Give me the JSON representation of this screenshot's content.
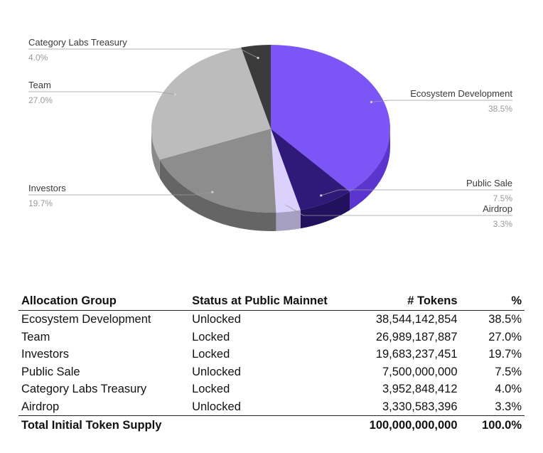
{
  "chart_data": {
    "type": "pie",
    "style": "3d",
    "slices": [
      {
        "label": "Ecosystem Development",
        "value": 38.5,
        "display": "38.5%",
        "color": "#7b55f5",
        "side_color": "#5a36cf"
      },
      {
        "label": "Public Sale",
        "value": 7.5,
        "display": "7.5%",
        "color": "#2f1a7a",
        "side_color": "#22115c"
      },
      {
        "label": "Airdrop",
        "value": 3.3,
        "display": "3.3%",
        "color": "#dad2fc",
        "side_color": "#a59fc2"
      },
      {
        "label": "Investors",
        "value": 19.7,
        "display": "19.7%",
        "color": "#8d8d8d",
        "side_color": "#656565"
      },
      {
        "label": "Team",
        "value": 27.0,
        "display": "27.0%",
        "color": "#bcbcbc",
        "side_color": "#8a8a8a"
      },
      {
        "label": "Category Labs Treasury",
        "value": 4.0,
        "display": "4.0%",
        "color": "#3b3b3b",
        "side_color": "#262626"
      }
    ]
  },
  "table": {
    "headers": {
      "group": "Allocation Group",
      "status": "Status at Public Mainnet",
      "tokens": "# Tokens",
      "pct": "%"
    },
    "rows": [
      {
        "group": "Ecosystem Development",
        "status": "Unlocked",
        "tokens": "38,544,142,854",
        "pct": "38.5%"
      },
      {
        "group": "Team",
        "status": "Locked",
        "tokens": "26,989,187,887",
        "pct": "27.0%"
      },
      {
        "group": "Investors",
        "status": "Locked",
        "tokens": "19,683,237,451",
        "pct": "19.7%"
      },
      {
        "group": "Public Sale",
        "status": "Unlocked",
        "tokens": "7,500,000,000",
        "pct": "7.5%"
      },
      {
        "group": "Category Labs Treasury",
        "status": "Locked",
        "tokens": "3,952,848,412",
        "pct": "4.0%"
      },
      {
        "group": "Airdrop",
        "status": "Unlocked",
        "tokens": "3,330,583,396",
        "pct": "3.3%"
      }
    ],
    "total": {
      "group": "Total Initial Token Supply",
      "tokens": "100,000,000,000",
      "pct": "100.0%"
    }
  }
}
